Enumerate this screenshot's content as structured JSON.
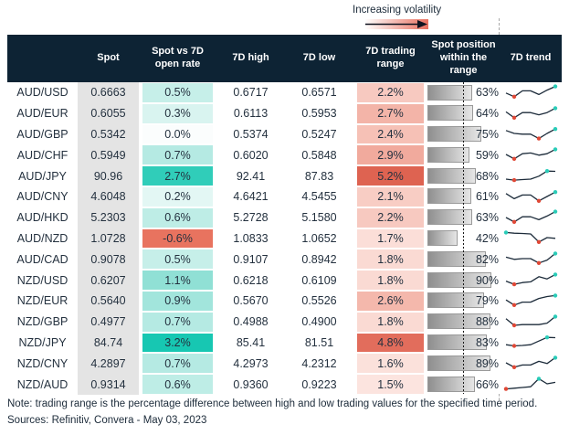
{
  "legend": {
    "label": "Increasing volatility"
  },
  "table": {
    "columns": [
      {
        "id": "pair",
        "label": ""
      },
      {
        "id": "spot",
        "label": "Spot"
      },
      {
        "id": "change",
        "label": "Spot vs 7D open rate"
      },
      {
        "id": "high",
        "label": "7D high"
      },
      {
        "id": "low",
        "label": "7D low"
      },
      {
        "id": "range",
        "label": "7D trading range"
      },
      {
        "id": "position",
        "label": "Spot position within the range"
      },
      {
        "id": "trend",
        "label": "7D trend"
      }
    ],
    "rows": [
      {
        "pair": "AUD/USD",
        "spot": "0.6663",
        "change": "0.5%",
        "change_color": "#c6efe9",
        "high": "0.6717",
        "low": "0.6571",
        "range": "2.2%",
        "range_color": "#f7c9c0",
        "position": "63%",
        "position_value": 63,
        "trend": {
          "points": [
            0.45,
            0.2,
            0.6,
            0.6,
            0.35,
            0.65,
            0.9
          ],
          "min_index": 1,
          "max_index": 6
        }
      },
      {
        "pair": "AUD/EUR",
        "spot": "0.6055",
        "change": "0.3%",
        "change_color": "#d9f4f0",
        "high": "0.6113",
        "low": "0.5953",
        "range": "2.7%",
        "range_color": "#f3b4a8",
        "position": "64%",
        "position_value": 64,
        "trend": {
          "points": [
            0.6,
            0.2,
            0.55,
            0.55,
            0.4,
            0.55,
            0.85
          ],
          "min_index": 1,
          "max_index": 6
        }
      },
      {
        "pair": "AUD/GBP",
        "spot": "0.5342",
        "change": "0.0%",
        "change_color": "#fbfdfd",
        "high": "0.5374",
        "low": "0.5247",
        "range": "2.4%",
        "range_color": "#f6c1b6",
        "position": "75%",
        "position_value": 75,
        "trend": {
          "points": [
            0.7,
            0.5,
            0.45,
            0.45,
            0.15,
            0.5,
            0.8
          ],
          "min_index": 4,
          "max_index": 6
        }
      },
      {
        "pair": "AUD/CHF",
        "spot": "0.5949",
        "change": "0.7%",
        "change_color": "#b5eae3",
        "high": "0.6020",
        "low": "0.5848",
        "range": "2.9%",
        "range_color": "#f1aa9d",
        "position": "59%",
        "position_value": 59,
        "trend": {
          "points": [
            0.5,
            0.2,
            0.55,
            0.6,
            0.45,
            0.55,
            0.85
          ],
          "min_index": 1,
          "max_index": 6
        }
      },
      {
        "pair": "AUD/JPY",
        "spot": "90.96",
        "change": "2.7%",
        "change_color": "#30cdb9",
        "high": "92.41",
        "low": "87.83",
        "range": "5.2%",
        "range_color": "#de6351",
        "position": "68%",
        "position_value": 68,
        "trend": {
          "points": [
            0.25,
            0.18,
            0.22,
            0.25,
            0.45,
            0.8,
            0.78
          ],
          "min_index": 1,
          "max_index": 5
        }
      },
      {
        "pair": "AUD/CNY",
        "spot": "4.6048",
        "change": "0.2%",
        "change_color": "#e3f7f4",
        "high": "4.6421",
        "low": "4.5455",
        "range": "2.1%",
        "range_color": "#f8cdc4",
        "position": "61%",
        "position_value": 61,
        "trend": {
          "points": [
            0.7,
            0.35,
            0.6,
            0.6,
            0.2,
            0.5,
            0.8
          ],
          "min_index": 4,
          "max_index": 6
        }
      },
      {
        "pair": "AUD/HKD",
        "spot": "5.2303",
        "change": "0.6%",
        "change_color": "#beede6",
        "high": "5.2728",
        "low": "5.1580",
        "range": "2.2%",
        "range_color": "#f7c9c0",
        "position": "63%",
        "position_value": 63,
        "trend": {
          "points": [
            0.5,
            0.2,
            0.55,
            0.55,
            0.35,
            0.6,
            0.9
          ],
          "min_index": 1,
          "max_index": 6
        }
      },
      {
        "pair": "AUD/NZD",
        "spot": "1.0728",
        "change": "-0.6%",
        "change_color": "#e8735f",
        "high": "1.0833",
        "low": "1.0652",
        "range": "1.7%",
        "range_color": "#fbded8",
        "position": "42%",
        "position_value": 42,
        "trend": {
          "points": [
            0.85,
            0.8,
            0.78,
            0.75,
            0.2,
            0.5,
            0.45
          ],
          "min_index": 4,
          "max_index": 0
        }
      },
      {
        "pair": "AUD/CAD",
        "spot": "0.9078",
        "change": "0.5%",
        "change_color": "#c6efe9",
        "high": "0.9107",
        "low": "0.8942",
        "range": "1.8%",
        "range_color": "#fadad3",
        "position": "82%",
        "position_value": 82,
        "trend": {
          "points": [
            0.6,
            0.45,
            0.5,
            0.5,
            0.2,
            0.4,
            0.85
          ],
          "min_index": 4,
          "max_index": 6
        }
      },
      {
        "pair": "NZD/USD",
        "spot": "0.6207",
        "change": "1.1%",
        "change_color": "#90e0d5",
        "high": "0.6218",
        "low": "0.6109",
        "range": "1.8%",
        "range_color": "#fadad3",
        "position": "90%",
        "position_value": 90,
        "trend": {
          "points": [
            0.4,
            0.18,
            0.3,
            0.35,
            0.7,
            0.55,
            0.85
          ],
          "min_index": 1,
          "max_index": 6
        }
      },
      {
        "pair": "NZD/EUR",
        "spot": "0.5640",
        "change": "0.9%",
        "change_color": "#a2e5dc",
        "high": "0.5670",
        "low": "0.5526",
        "range": "2.6%",
        "range_color": "#f4b8ac",
        "position": "79%",
        "position_value": 79,
        "trend": {
          "points": [
            0.55,
            0.2,
            0.4,
            0.4,
            0.65,
            0.78,
            0.85
          ],
          "min_index": 1,
          "max_index": 6
        }
      },
      {
        "pair": "NZD/GBP",
        "spot": "0.4977",
        "change": "0.7%",
        "change_color": "#b5eae3",
        "high": "0.4988",
        "low": "0.4900",
        "range": "1.8%",
        "range_color": "#fadad3",
        "position": "88%",
        "position_value": 88,
        "trend": {
          "points": [
            0.7,
            0.25,
            0.3,
            0.3,
            0.3,
            0.4,
            0.85
          ],
          "min_index": 1,
          "max_index": 6
        }
      },
      {
        "pair": "NZD/JPY",
        "spot": "84.74",
        "change": "3.2%",
        "change_color": "#17c7b2",
        "high": "85.41",
        "low": "81.51",
        "range": "4.8%",
        "range_color": "#e26d5c",
        "position": "83%",
        "position_value": 83,
        "trend": {
          "points": [
            0.3,
            0.22,
            0.25,
            0.3,
            0.55,
            0.8,
            0.78
          ],
          "min_index": 1,
          "max_index": 5
        }
      },
      {
        "pair": "NZD/CNY",
        "spot": "4.2897",
        "change": "0.7%",
        "change_color": "#b5eae3",
        "high": "4.2973",
        "low": "4.2312",
        "range": "1.6%",
        "range_color": "#fbe1db",
        "position": "89%",
        "position_value": 89,
        "trend": {
          "points": [
            0.5,
            0.2,
            0.35,
            0.35,
            0.6,
            0.45,
            0.85
          ],
          "min_index": 1,
          "max_index": 6
        }
      },
      {
        "pair": "NZD/AUD",
        "spot": "0.9314",
        "change": "0.6%",
        "change_color": "#beede6",
        "high": "0.9360",
        "low": "0.9223",
        "range": "1.5%",
        "range_color": "#fce4df",
        "position": "66%",
        "position_value": 66,
        "trend": {
          "points": [
            0.15,
            0.2,
            0.25,
            0.3,
            0.85,
            0.5,
            0.6
          ],
          "min_index": 0,
          "max_index": 4
        }
      }
    ]
  },
  "footer": {
    "note": "Note: trading range is the percentage difference between high and low trading values for the specified time period.",
    "sources": "Sources: Refinitiv, Convera - May 03, 2023"
  },
  "colors": {
    "header_bg": "#0d2334",
    "text": "#24313f",
    "spot_column_bg": "#e4e4e4",
    "bar_border": "#9a9a9a",
    "bar_gradient_start": "#8f8f8f",
    "bar_gradient_end": "#e6e6e6",
    "spark_line": "#1c2b3a",
    "spark_min_dot": "#e04836",
    "spark_max_dot": "#2accb8",
    "legend_gradient_end": "#e8705f",
    "dotted_line": "#1a1a1a"
  },
  "chart_data": {
    "type": "table",
    "title": "",
    "legend": "Increasing volatility",
    "columns": [
      "Pair",
      "Spot",
      "Spot vs 7D open rate",
      "7D high",
      "7D low",
      "7D trading range",
      "Spot position within the range",
      "7D trend"
    ],
    "rows": [
      [
        "AUD/USD",
        0.6663,
        "0.5%",
        0.6717,
        0.6571,
        "2.2%",
        "63%"
      ],
      [
        "AUD/EUR",
        0.6055,
        "0.3%",
        0.6113,
        0.5953,
        "2.7%",
        "64%"
      ],
      [
        "AUD/GBP",
        0.5342,
        "0.0%",
        0.5374,
        0.5247,
        "2.4%",
        "75%"
      ],
      [
        "AUD/CHF",
        0.5949,
        "0.7%",
        0.602,
        0.5848,
        "2.9%",
        "59%"
      ],
      [
        "AUD/JPY",
        90.96,
        "2.7%",
        92.41,
        87.83,
        "5.2%",
        "68%"
      ],
      [
        "AUD/CNY",
        4.6048,
        "0.2%",
        4.6421,
        4.5455,
        "2.1%",
        "61%"
      ],
      [
        "AUD/HKD",
        5.2303,
        "0.6%",
        5.2728,
        5.158,
        "2.2%",
        "63%"
      ],
      [
        "AUD/NZD",
        1.0728,
        "-0.6%",
        1.0833,
        1.0652,
        "1.7%",
        "42%"
      ],
      [
        "AUD/CAD",
        0.9078,
        "0.5%",
        0.9107,
        0.8942,
        "1.8%",
        "82%"
      ],
      [
        "NZD/USD",
        0.6207,
        "1.1%",
        0.6218,
        0.6109,
        "1.8%",
        "90%"
      ],
      [
        "NZD/EUR",
        0.564,
        "0.9%",
        0.567,
        0.5526,
        "2.6%",
        "79%"
      ],
      [
        "NZD/GBP",
        0.4977,
        "0.7%",
        0.4988,
        0.49,
        "1.8%",
        "88%"
      ],
      [
        "NZD/JPY",
        84.74,
        "3.2%",
        85.41,
        81.51,
        "4.8%",
        "83%"
      ],
      [
        "NZD/CNY",
        4.2897,
        "0.7%",
        4.2973,
        4.2312,
        "1.6%",
        "89%"
      ],
      [
        "NZD/AUD",
        0.9314,
        "0.6%",
        0.936,
        0.9223,
        "1.5%",
        "66%"
      ]
    ]
  }
}
